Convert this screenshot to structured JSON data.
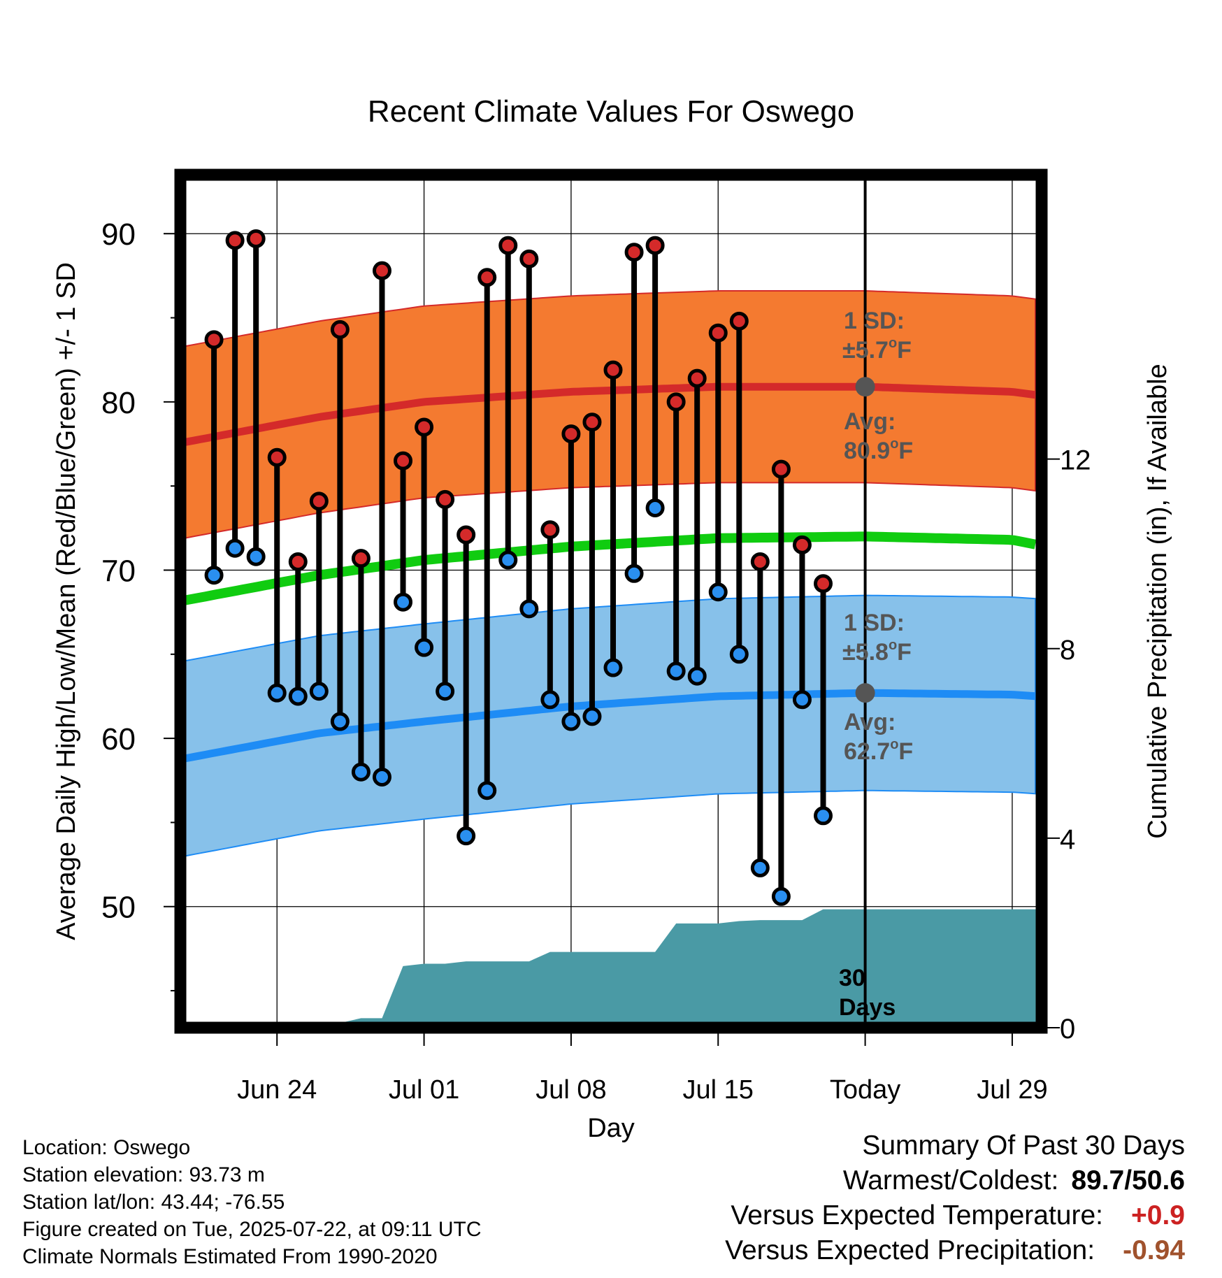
{
  "chart_data": {
    "type": "line",
    "title": "Recent Climate Values For Oswego",
    "xlabel": "Day",
    "ylabel": "Average Daily High/Low/Mean (Red/Blue/Green) +/- 1 SD",
    "y2label": "Cumulative Precipitation (in), If Available",
    "ylim": [
      42.8,
      93.5
    ],
    "y2lim": [
      0,
      18
    ],
    "xlim": [
      -1.6,
      39.4
    ],
    "x_tick_positions": [
      3,
      10,
      17,
      24,
      31,
      38
    ],
    "x_tick_labels": [
      "Jun 24",
      "Jul 01",
      "Jul 08",
      "Jul 15",
      "Today",
      "Jul 29"
    ],
    "y_ticks": [
      50,
      60,
      70,
      80,
      90
    ],
    "y2_ticks": [
      0,
      4,
      8,
      12
    ],
    "grid": true,
    "today_index": 31,
    "daily": [
      {
        "high": 83.7,
        "low": 69.7
      },
      {
        "high": 89.6,
        "low": 71.3
      },
      {
        "high": 89.7,
        "low": 70.8
      },
      {
        "high": 76.7,
        "low": 62.7
      },
      {
        "high": 70.5,
        "low": 62.5
      },
      {
        "high": 74.1,
        "low": 62.8
      },
      {
        "high": 84.3,
        "low": 61.0
      },
      {
        "high": 70.7,
        "low": 58.0
      },
      {
        "high": 87.8,
        "low": 57.7
      },
      {
        "high": 76.5,
        "low": 68.1
      },
      {
        "high": 78.5,
        "low": 65.4
      },
      {
        "high": 74.2,
        "low": 62.8
      },
      {
        "high": 72.1,
        "low": 54.2
      },
      {
        "high": 87.4,
        "low": 56.9
      },
      {
        "high": 89.3,
        "low": 70.6
      },
      {
        "high": 88.5,
        "low": 67.7
      },
      {
        "high": 72.4,
        "low": 62.3
      },
      {
        "high": 78.1,
        "low": 61.0
      },
      {
        "high": 78.8,
        "low": 61.3
      },
      {
        "high": 81.9,
        "low": 64.2
      },
      {
        "high": 88.9,
        "low": 69.8
      },
      {
        "high": 89.3,
        "low": 73.7
      },
      {
        "high": 80.0,
        "low": 64.0
      },
      {
        "high": 81.4,
        "low": 63.7
      },
      {
        "high": 84.1,
        "low": 68.7
      },
      {
        "high": 84.8,
        "low": 65.0
      },
      {
        "high": 70.5,
        "low": 52.3
      },
      {
        "high": 76.0,
        "low": 50.6
      },
      {
        "high": 71.5,
        "low": 62.3
      },
      {
        "high": 69.2,
        "low": 55.4
      }
    ],
    "normal_high": {
      "x": [
        -1.4,
        5,
        10,
        17,
        24,
        31,
        38,
        39.2
      ],
      "values": [
        77.6,
        79.1,
        80.0,
        80.6,
        80.9,
        80.9,
        80.6,
        80.4
      ]
    },
    "normal_low": {
      "x": [
        -1.4,
        5,
        10,
        17,
        24,
        31,
        38,
        39.2
      ],
      "values": [
        58.8,
        60.3,
        61.0,
        61.9,
        62.5,
        62.7,
        62.6,
        62.5
      ]
    },
    "normal_mean": {
      "x": [
        -1.4,
        5,
        10,
        17,
        24,
        31,
        38,
        39.2
      ],
      "values": [
        68.2,
        69.7,
        70.6,
        71.4,
        71.9,
        72.0,
        71.8,
        71.5
      ]
    },
    "high_sd": 5.7,
    "low_sd": 5.8,
    "precip_cumulative": {
      "x": [
        -1.4,
        5,
        6,
        7,
        8,
        9,
        10,
        11,
        12,
        13,
        14,
        15,
        16,
        17,
        18,
        19,
        20,
        21,
        22,
        23,
        24,
        25,
        26,
        27,
        28,
        29,
        30,
        31,
        39.2
      ],
      "values": [
        0,
        0,
        0.1,
        0.2,
        0.2,
        1.3,
        1.35,
        1.35,
        1.4,
        1.4,
        1.4,
        1.4,
        1.6,
        1.6,
        1.6,
        1.6,
        1.6,
        1.6,
        2.2,
        2.2,
        2.2,
        2.25,
        2.27,
        2.27,
        2.27,
        2.5,
        2.5,
        2.5,
        2.5
      ]
    },
    "annotations": {
      "high_sd_label": "1 SD:",
      "high_sd_value": "±5.7",
      "high_avg_label": "Avg:",
      "high_avg_value": "80.9",
      "low_sd_label": "1 SD:",
      "low_sd_value": "±5.8",
      "low_avg_label": "Avg:",
      "low_avg_value": "62.7",
      "degree_mark": "o",
      "unit": "F",
      "days_line1": "30",
      "days_line2": "Days"
    },
    "colors": {
      "high_band": "#f47a30",
      "high_line": "#d42a2a",
      "low_band": "#87c1ea",
      "low_line": "#1e8cf5",
      "mean_line": "#10cc10",
      "precip_fill": "#4a9aa5",
      "high_dot": "#d42a2a",
      "low_dot": "#2a8ff0",
      "annotation": "#555555"
    }
  },
  "footer": {
    "location": "Location: Oswego",
    "elevation": "Station elevation: 93.73 m",
    "latlon": "Station lat/lon: 43.44; -76.55",
    "created": "Figure created on Tue, 2025-07-22, at 09:11 UTC",
    "normals": "Climate Normals Estimated From 1990-2020"
  },
  "summary": {
    "title": "Summary Of Past 30 Days",
    "warm_cold_label": "Warmest/Coldest:",
    "warm": "89.7",
    "sep": "/",
    "cold": "50.6",
    "temp_label": "Versus Expected Temperature:",
    "temp_value": "+0.9",
    "precip_label": "Versus Expected Precipitation:",
    "precip_value": "-0.94"
  }
}
